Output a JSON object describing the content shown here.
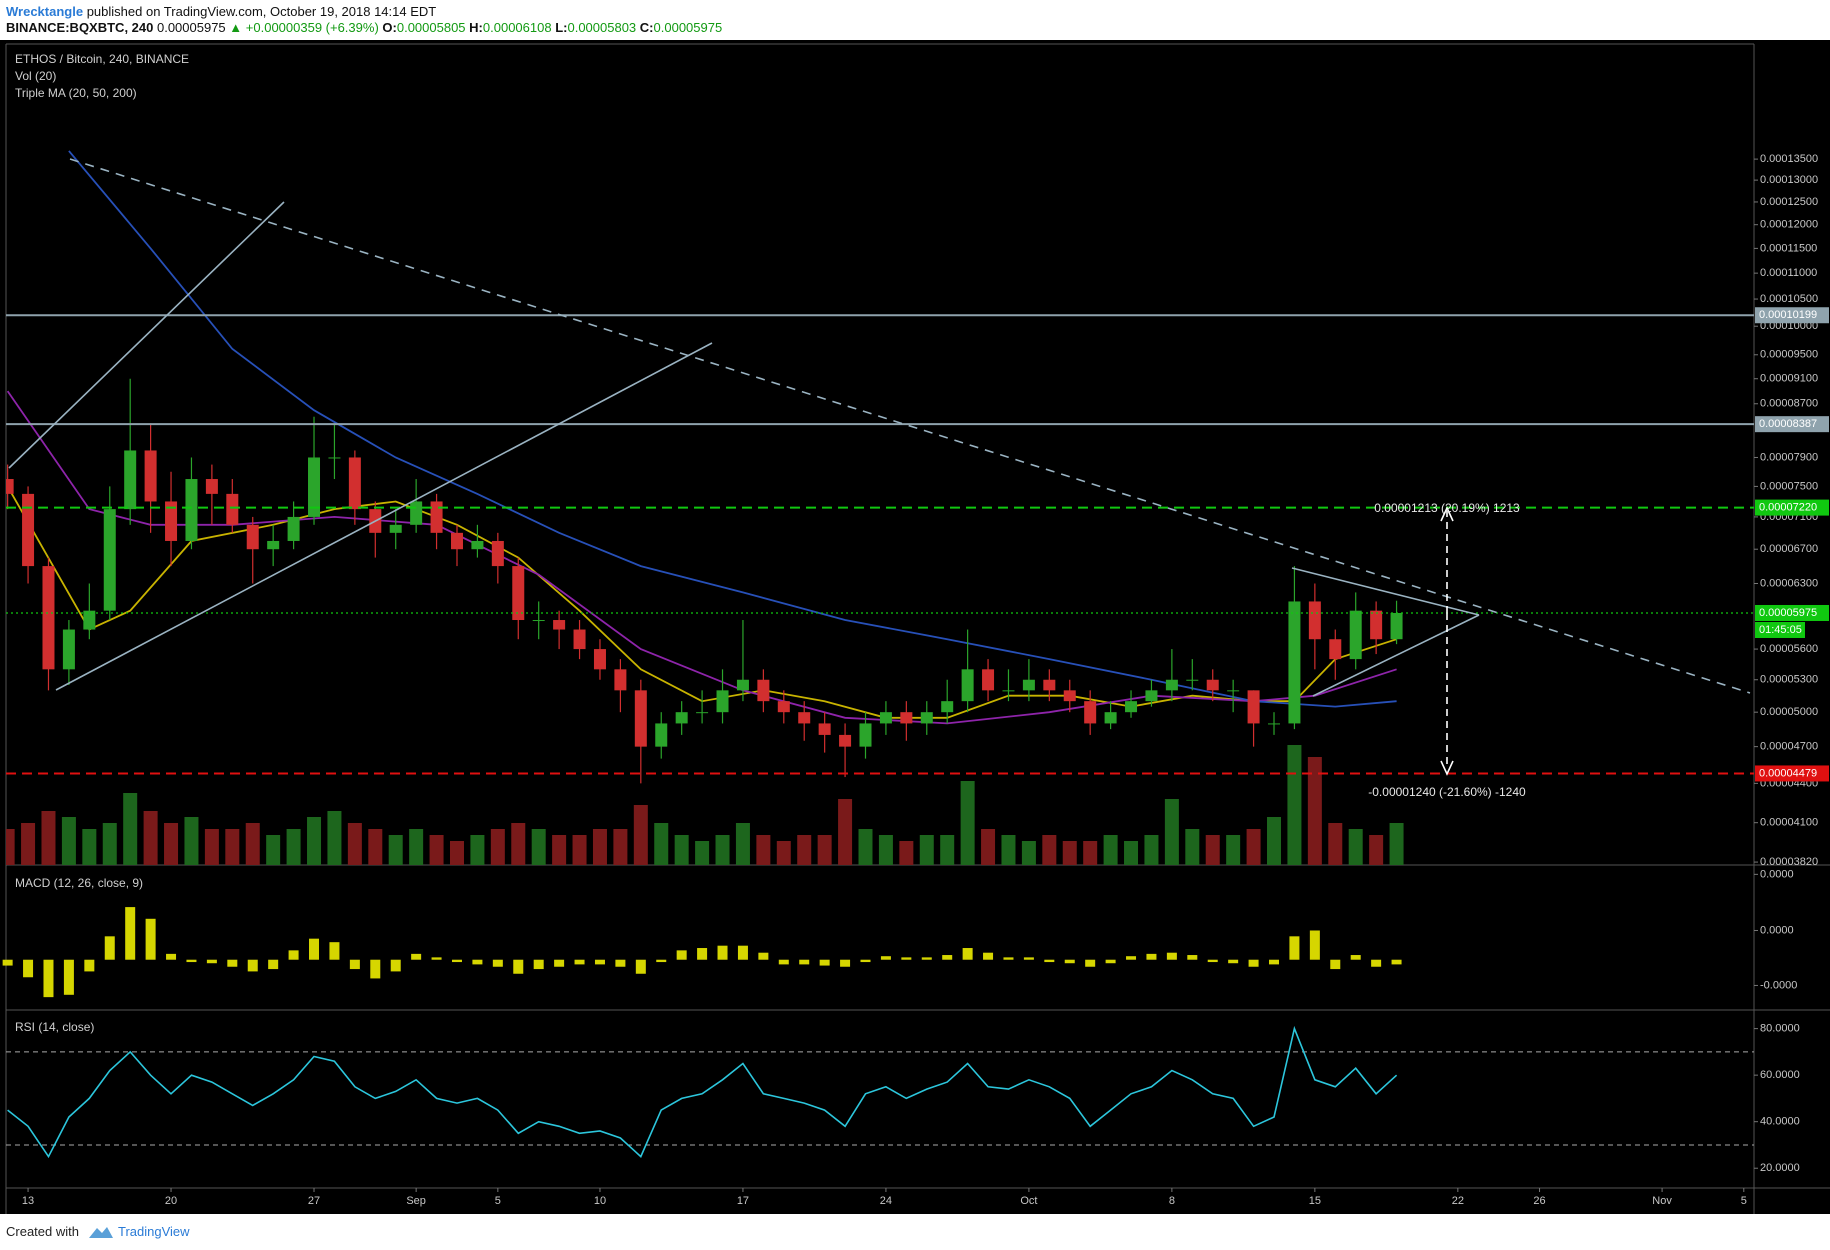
{
  "header": {
    "author": "Wrecktangle",
    "byline": " published on TradingView.com, October 19, 2018 14:14 EDT",
    "symbol": "BINANCE:BQXBTC, 240",
    "last": "0.00005975",
    "change": "▲ +0.00000359 (+6.39%)",
    "ohlc": [
      {
        "label": "O:",
        "value": "0.00005805"
      },
      {
        "label": "H:",
        "value": "0.00006108"
      },
      {
        "label": "L:",
        "value": "0.00005803"
      },
      {
        "label": "C:",
        "value": "0.00005975"
      }
    ]
  },
  "chart_data": {
    "type": "candlestick",
    "title": "ETHOS / Bitcoin, 240, BINANCE",
    "indicators": [
      "Vol (20)",
      "Triple MA (20, 50, 200)"
    ],
    "x": [
      -1,
      0,
      1,
      2,
      3,
      4,
      5,
      6,
      7,
      8,
      9,
      10,
      11,
      12,
      13,
      14,
      15,
      16,
      17,
      18,
      19,
      20,
      21,
      22,
      23,
      24,
      25,
      26,
      27,
      28,
      29,
      30,
      31,
      32,
      33,
      34,
      35,
      36,
      37,
      38,
      39,
      40,
      41,
      42,
      43,
      44,
      45,
      46,
      47,
      48,
      49,
      50,
      51,
      52,
      53,
      54,
      55,
      56,
      57,
      58,
      59,
      60,
      61,
      62,
      63,
      64,
      65,
      66,
      67
    ],
    "open": [
      7.6e-05,
      7.4e-05,
      6.5e-05,
      5.4e-05,
      5.8e-05,
      6e-05,
      7.2e-05,
      8e-05,
      7.3e-05,
      6.8e-05,
      7.6e-05,
      7.4e-05,
      7e-05,
      6.7e-05,
      6.8e-05,
      7.1e-05,
      7.9e-05,
      7.9e-05,
      7.2e-05,
      6.9e-05,
      7e-05,
      7.3e-05,
      6.9e-05,
      6.7e-05,
      6.8e-05,
      6.5e-05,
      5.9e-05,
      5.9e-05,
      5.8e-05,
      5.6e-05,
      5.4e-05,
      5.2e-05,
      4.7e-05,
      4.9e-05,
      5e-05,
      5e-05,
      5.2e-05,
      5.3e-05,
      5.1e-05,
      5e-05,
      4.9e-05,
      4.8e-05,
      4.7e-05,
      4.9e-05,
      5e-05,
      4.9e-05,
      5e-05,
      5.1e-05,
      5.4e-05,
      5.2e-05,
      5.2e-05,
      5.3e-05,
      5.2e-05,
      5.1e-05,
      4.9e-05,
      5e-05,
      5.1e-05,
      5.2e-05,
      5.3e-05,
      5.3e-05,
      5.2e-05,
      5.2e-05,
      4.9e-05,
      4.9e-05,
      6.1e-05,
      5.7e-05,
      5.5e-05,
      6e-05,
      5.7e-05
    ],
    "high": [
      7.8e-05,
      7.5e-05,
      6.6e-05,
      5.9e-05,
      6.3e-05,
      7.5e-05,
      9.1e-05,
      8.4e-05,
      7.7e-05,
      7.9e-05,
      7.8e-05,
      7.6e-05,
      7.1e-05,
      7e-05,
      7.3e-05,
      8.5e-05,
      8.4e-05,
      8e-05,
      7.3e-05,
      7.2e-05,
      7.6e-05,
      7.4e-05,
      7e-05,
      7e-05,
      6.9e-05,
      6.6e-05,
      6.1e-05,
      6e-05,
      5.9e-05,
      5.7e-05,
      5.5e-05,
      5.3e-05,
      5e-05,
      5.1e-05,
      5.2e-05,
      5.4e-05,
      5.9e-05,
      5.4e-05,
      5.2e-05,
      5.1e-05,
      5e-05,
      4.9e-05,
      5e-05,
      5.1e-05,
      5.1e-05,
      5.1e-05,
      5.3e-05,
      5.8e-05,
      5.5e-05,
      5.4e-05,
      5.5e-05,
      5.4e-05,
      5.3e-05,
      5.2e-05,
      5.1e-05,
      5.2e-05,
      5.3e-05,
      5.6e-05,
      5.5e-05,
      5.4e-05,
      5.3e-05,
      5.2e-05,
      5e-05,
      6.5e-05,
      6.3e-05,
      5.8e-05,
      6.2e-05,
      6.1e-05,
      6.108e-05
    ],
    "low": [
      7.2e-05,
      6.3e-05,
      5.2e-05,
      5.25e-05,
      5.7e-05,
      5.9e-05,
      7e-05,
      6.9e-05,
      6.5e-05,
      6.7e-05,
      7e-05,
      6.9e-05,
      6.3e-05,
      6.5e-05,
      6.7e-05,
      7e-05,
      7.6e-05,
      7e-05,
      6.6e-05,
      6.7e-05,
      6.9e-05,
      6.7e-05,
      6.5e-05,
      6.6e-05,
      6.3e-05,
      5.7e-05,
      5.7e-05,
      5.6e-05,
      5.5e-05,
      5.3e-05,
      5e-05,
      4.4e-05,
      4.6e-05,
      4.8e-05,
      4.9e-05,
      4.9e-05,
      5.1e-05,
      5e-05,
      4.9e-05,
      4.75e-05,
      4.65e-05,
      4.45e-05,
      4.6e-05,
      4.8e-05,
      4.75e-05,
      4.8e-05,
      4.9e-05,
      5e-05,
      5.1e-05,
      5.1e-05,
      5.1e-05,
      5.1e-05,
      5e-05,
      4.8e-05,
      4.85e-05,
      4.95e-05,
      5.05e-05,
      5.1e-05,
      5.2e-05,
      5.1e-05,
      5e-05,
      4.7e-05,
      4.8e-05,
      4.85e-05,
      5.4e-05,
      5.3e-05,
      5.4e-05,
      5.55e-05,
      5.65e-05
    ],
    "close": [
      7.4e-05,
      6.5e-05,
      5.4e-05,
      5.8e-05,
      6e-05,
      7.2e-05,
      8e-05,
      7.3e-05,
      6.8e-05,
      7.6e-05,
      7.4e-05,
      7e-05,
      6.7e-05,
      6.8e-05,
      7.1e-05,
      7.9e-05,
      7.9e-05,
      7.2e-05,
      6.9e-05,
      7e-05,
      7.3e-05,
      6.9e-05,
      6.7e-05,
      6.8e-05,
      6.5e-05,
      5.9e-05,
      5.9e-05,
      5.8e-05,
      5.6e-05,
      5.4e-05,
      5.2e-05,
      4.7e-05,
      4.9e-05,
      5e-05,
      5e-05,
      5.2e-05,
      5.3e-05,
      5.1e-05,
      5e-05,
      4.9e-05,
      4.8e-05,
      4.7e-05,
      4.9e-05,
      5e-05,
      4.9e-05,
      5e-05,
      5.1e-05,
      5.4e-05,
      5.2e-05,
      5.2e-05,
      5.3e-05,
      5.2e-05,
      5.1e-05,
      4.9e-05,
      5e-05,
      5.1e-05,
      5.2e-05,
      5.3e-05,
      5.3e-05,
      5.2e-05,
      5.2e-05,
      4.9e-05,
      4.9e-05,
      6.1e-05,
      5.7e-05,
      5.5e-05,
      6e-05,
      5.7e-05,
      5.975e-05
    ],
    "volume": [
      30,
      35,
      45,
      40,
      30,
      35,
      60,
      45,
      35,
      40,
      30,
      30,
      35,
      25,
      30,
      40,
      45,
      35,
      30,
      25,
      30,
      25,
      20,
      25,
      30,
      35,
      30,
      25,
      25,
      30,
      30,
      50,
      35,
      25,
      20,
      25,
      35,
      25,
      20,
      25,
      25,
      55,
      30,
      25,
      20,
      25,
      25,
      70,
      30,
      25,
      20,
      25,
      20,
      20,
      25,
      20,
      25,
      55,
      30,
      25,
      25,
      30,
      40,
      100,
      90,
      35,
      30,
      25,
      35
    ],
    "up_color": "#2ba52b",
    "down_color": "#d22f2f",
    "volume_up_color": "#1d661d",
    "volume_down_color": "#7a1a1a",
    "log_scale": true,
    "xlim": [
      -1.08,
      84.5
    ],
    "ylim": [
      3.8e-05,
      0.000166
    ],
    "xticks": [
      {
        "value": 0,
        "label": "13"
      },
      {
        "value": 7,
        "label": "20"
      },
      {
        "value": 14,
        "label": "27"
      },
      {
        "value": 19,
        "label": "Sep"
      },
      {
        "value": 23,
        "label": "5"
      },
      {
        "value": 28,
        "label": "10"
      },
      {
        "value": 35,
        "label": "17"
      },
      {
        "value": 42,
        "label": "24"
      },
      {
        "value": 49,
        "label": "Oct"
      },
      {
        "value": 56,
        "label": "8"
      },
      {
        "value": 63,
        "label": "15"
      },
      {
        "value": 70,
        "label": "22"
      },
      {
        "value": 74,
        "label": "26"
      },
      {
        "value": 80,
        "label": "Nov"
      },
      {
        "value": 84,
        "label": "5"
      }
    ],
    "yticks": [
      {
        "value": 0.000135,
        "label": "0.00013500"
      },
      {
        "value": 0.00013,
        "label": "0.00013000"
      },
      {
        "value": 0.000125,
        "label": "0.00012500"
      },
      {
        "value": 0.00012,
        "label": "0.00012000"
      },
      {
        "value": 0.000115,
        "label": "0.00011500"
      },
      {
        "value": 0.00011,
        "label": "0.00011000"
      },
      {
        "value": 0.000105,
        "label": "0.00010500"
      },
      {
        "value": 0.0001,
        "label": "0.00010000"
      },
      {
        "value": 9.5e-05,
        "label": "0.00009500"
      },
      {
        "value": 9.1e-05,
        "label": "0.00009100"
      },
      {
        "value": 8.7e-05,
        "label": "0.00008700"
      },
      {
        "value": 7.9e-05,
        "label": "0.00007900"
      },
      {
        "value": 7.5e-05,
        "label": "0.00007500"
      },
      {
        "value": 7.1e-05,
        "label": "0.00007100"
      },
      {
        "value": 6.7e-05,
        "label": "0.00006700"
      },
      {
        "value": 6.3e-05,
        "label": "0.00006300"
      },
      {
        "value": 5.6e-05,
        "label": "0.00005600"
      },
      {
        "value": 5.3e-05,
        "label": "0.00005300"
      },
      {
        "value": 5e-05,
        "label": "0.00005000"
      },
      {
        "value": 4.7e-05,
        "label": "0.00004700"
      },
      {
        "value": 4.4e-05,
        "label": "0.00004400"
      },
      {
        "value": 4.1e-05,
        "label": "0.00004100"
      },
      {
        "value": 3.82e-05,
        "label": "0.00003820"
      }
    ],
    "ma": [
      {
        "color": "#c8b300",
        "x": [
          -1,
          3,
          5,
          8,
          12,
          15,
          18,
          21,
          24,
          27,
          30,
          33,
          36,
          39,
          42,
          45,
          48,
          51,
          54,
          57,
          60,
          62,
          64,
          67
        ],
        "values": [
          7.5e-05,
          5.8e-05,
          6e-05,
          6.8e-05,
          7e-05,
          7.2e-05,
          7.3e-05,
          7e-05,
          6.6e-05,
          6e-05,
          5.4e-05,
          5.1e-05,
          5.2e-05,
          5.1e-05,
          4.95e-05,
          4.95e-05,
          5.15e-05,
          5.15e-05,
          5.05e-05,
          5.15e-05,
          5.1e-05,
          5.1e-05,
          5.5e-05,
          5.7e-05
        ]
      },
      {
        "color": "#8e24aa",
        "x": [
          -1,
          3,
          6,
          10,
          15,
          20,
          25,
          30,
          35,
          40,
          45,
          50,
          55,
          60,
          63,
          67
        ],
        "values": [
          8.9e-05,
          7.2e-05,
          7e-05,
          7e-05,
          7.1e-05,
          7e-05,
          6.4e-05,
          5.6e-05,
          5.2e-05,
          4.95e-05,
          4.9e-05,
          5e-05,
          5.15e-05,
          5.1e-05,
          5.15e-05,
          5.4e-05
        ]
      },
      {
        "color": "#2750b8",
        "x": [
          2,
          6,
          10,
          14,
          18,
          22,
          26,
          30,
          35,
          40,
          45,
          50,
          55,
          60,
          64,
          67
        ],
        "values": [
          0.000137,
          0.000115,
          9.6e-05,
          8.6e-05,
          7.9e-05,
          7.4e-05,
          6.9e-05,
          6.5e-05,
          6.2e-05,
          5.9e-05,
          5.7e-05,
          5.5e-05,
          5.3e-05,
          5.1e-05,
          5.05e-05,
          5.1e-05
        ]
      }
    ],
    "levels": [
      {
        "value": 0.00010199,
        "label": "0.00010199",
        "color": "#8fa3ad",
        "style": "solid"
      },
      {
        "value": 8.387e-05,
        "label": "0.00008387",
        "color": "#8fa3ad",
        "style": "solid"
      },
      {
        "value": 7.22e-05,
        "label": "0.00007220",
        "color": "#10c810",
        "style": "dashed"
      },
      {
        "value": 5.975e-05,
        "label": "0.00005975",
        "color": "#10c810",
        "style": "dotted",
        "countdown": "01:45:05"
      },
      {
        "value": 4.479e-05,
        "label": "0.00004479",
        "color": "#e01010",
        "style": "dashed"
      }
    ],
    "annotations": [
      "0.00001213 (20.19%) 1213",
      "-0.00001240 (-21.60%) -1240"
    ],
    "macd": {
      "title": "MACD (12, 26, close, 9)",
      "color": "#d6d600",
      "ylim": [
        -4.3e-07,
        8.1e-07
      ],
      "yticks": [
        {
          "value": 7.3e-07,
          "label": "0.0000"
        },
        {
          "value": 2.5e-07,
          "label": "0.0000"
        },
        {
          "value": -2.2e-07,
          "label": "-0.0000"
        }
      ],
      "values": [
        -5e-08,
        -1.5e-07,
        -3.2e-07,
        -3e-07,
        -1e-07,
        2e-07,
        4.5e-07,
        3.5e-07,
        5e-08,
        -2e-08,
        -3e-08,
        -6e-08,
        -1e-07,
        -8e-08,
        8e-08,
        1.8e-07,
        1.5e-07,
        -8e-08,
        -1.6e-07,
        -1e-07,
        5e-08,
        2e-08,
        -2e-08,
        -4e-08,
        -6e-08,
        -1.2e-07,
        -8e-08,
        -6e-08,
        -4e-08,
        -4e-08,
        -6e-08,
        -1.2e-07,
        -2e-08,
        8e-08,
        1e-07,
        1.2e-07,
        1.2e-07,
        6e-08,
        -4e-08,
        -4e-08,
        -5e-08,
        -6e-08,
        -2e-08,
        3e-08,
        2e-08,
        2e-08,
        4e-08,
        1e-07,
        6e-08,
        2e-08,
        2e-08,
        -2e-08,
        -3e-08,
        -6e-08,
        -3e-08,
        3e-08,
        5e-08,
        6e-08,
        4e-08,
        -2e-08,
        -3e-08,
        -6e-08,
        -4e-08,
        2e-07,
        2.5e-07,
        -8e-08,
        4e-08,
        -6e-08,
        -4e-08
      ]
    },
    "rsi": {
      "title": "RSI (14, close)",
      "color": "#2cc6dc",
      "ylim": [
        11.5,
        88
      ],
      "levels": [
        70,
        30
      ],
      "yticks": [
        {
          "value": 80,
          "label": "80.0000"
        },
        {
          "value": 60,
          "label": "60.0000"
        },
        {
          "value": 40,
          "label": "40.0000"
        },
        {
          "value": 20,
          "label": "20.0000"
        }
      ],
      "values": [
        45,
        38,
        25,
        42,
        50,
        62,
        70,
        60,
        52,
        60,
        57,
        52,
        47,
        52,
        58,
        68,
        66,
        55,
        50,
        53,
        58,
        50,
        48,
        50,
        45,
        35,
        40,
        38,
        35,
        36,
        33,
        25,
        45,
        50,
        52,
        58,
        65,
        52,
        50,
        48,
        45,
        38,
        52,
        55,
        50,
        54,
        57,
        65,
        55,
        54,
        58,
        55,
        50,
        38,
        45,
        52,
        55,
        62,
        58,
        52,
        50,
        38,
        42,
        80,
        58,
        55,
        63,
        52,
        60
      ]
    }
  },
  "footer": {
    "created": "Created with",
    "brand": "TradingView"
  }
}
